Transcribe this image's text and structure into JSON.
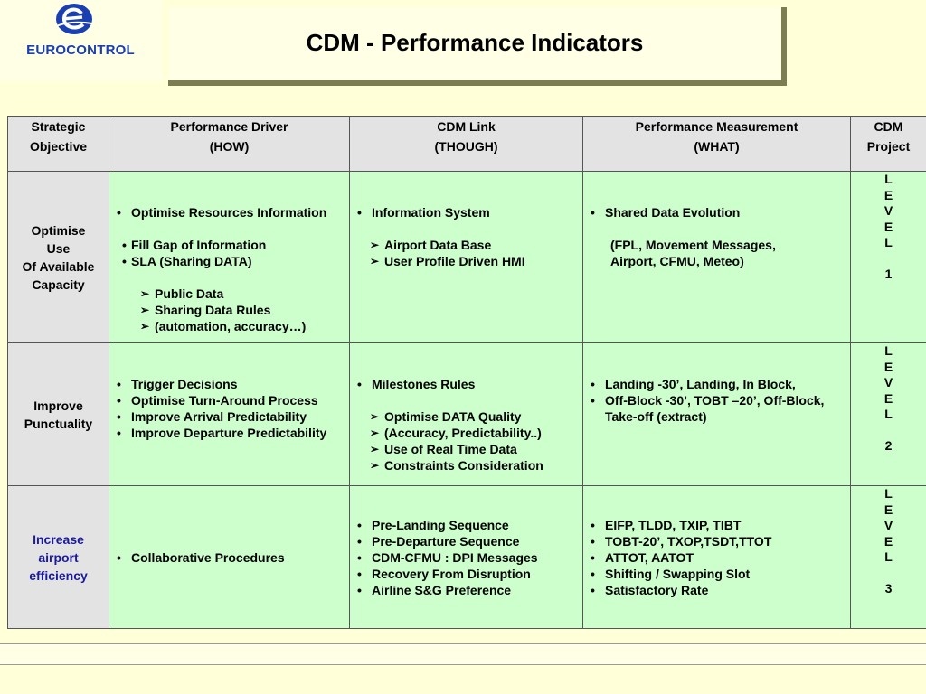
{
  "logo": {
    "text": "EUROCONTROL",
    "icon": "eurocontrol-logo-icon",
    "color": "#1a3fb0"
  },
  "title": "CDM - Performance Indicators",
  "table": {
    "headers": [
      {
        "line1": "Strategic",
        "line2": "Objective"
      },
      {
        "line1": "Performance Driver",
        "line2": "(HOW)"
      },
      {
        "line1": "CDM Link",
        "line2": "(THOUGH)"
      },
      {
        "line1": "Performance Measurement",
        "line2": "(WHAT)"
      },
      {
        "line1": "CDM",
        "line2": "Project"
      }
    ],
    "rows": [
      {
        "objective": [
          "Optimise",
          "Use",
          "Of Available",
          "Capacity"
        ],
        "driver": {
          "bullets": [
            "Optimise Resources Information"
          ],
          "sub_bullets": [
            "Fill Gap of Information",
            "SLA (Sharing DATA)"
          ],
          "arrows": [
            "Public Data",
            "Sharing Data Rules",
            "(automation, accuracy…)"
          ]
        },
        "link": {
          "bullets": [
            "Information System"
          ],
          "arrows": [
            "Airport Data Base",
            "User Profile Driven HMI"
          ]
        },
        "measurement": {
          "bullets": [
            "Shared Data Evolution"
          ],
          "paragraph": [
            "(FPL, Movement Messages,",
            "Airport, CFMU, Meteo)"
          ]
        },
        "project": [
          "L",
          "E",
          "V",
          "E",
          "L",
          "",
          "1"
        ]
      },
      {
        "objective": [
          "Improve",
          "Punctuality"
        ],
        "driver": {
          "bullets": [
            "Trigger Decisions",
            "Optimise Turn-Around Process",
            "Improve Arrival Predictability",
            "Improve Departure Predictability"
          ]
        },
        "link": {
          "bullets": [
            "Milestones Rules"
          ],
          "arrows": [
            "Optimise DATA Quality",
            "(Accuracy, Predictability..)",
            "Use of Real Time Data",
            "Constraints Consideration"
          ]
        },
        "measurement": {
          "bullets": [
            "Landing -30’,  Landing, In Block,",
            "Off-Block -30’, TOBT –20’, Off-Block, Take-off     (extract)"
          ]
        },
        "project": [
          "L",
          "E",
          "V",
          "E",
          "L",
          "",
          "2"
        ]
      },
      {
        "objective": [
          "Increase",
          "airport",
          "efficiency"
        ],
        "driver": {
          "bullets": [
            "Collaborative Procedures"
          ]
        },
        "link": {
          "bullets": [
            "Pre-Landing Sequence",
            "Pre-Departure Sequence",
            "CDM-CFMU : DPI Messages",
            "Recovery From Disruption",
            "Airline S&G Preference"
          ]
        },
        "measurement": {
          "bullets": [
            "EIFP, TLDD, TXIP, TIBT",
            "TOBT-20’, TXOP,TSDT,TTOT",
            "ATTOT, AATOT",
            "Shifting / Swapping Slot",
            "Satisfactory Rate"
          ]
        },
        "project": [
          "L",
          "E",
          "V",
          "E",
          "L",
          "",
          "3"
        ]
      }
    ]
  },
  "colors": {
    "background": "#ffffd8",
    "cell_green": "#ccffcc",
    "header_gray": "#e3e3e3",
    "objective_blue": "#1a1a9e"
  }
}
